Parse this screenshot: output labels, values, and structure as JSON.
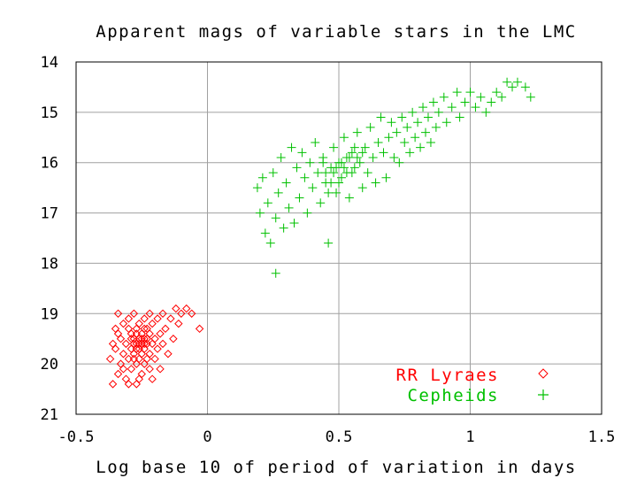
{
  "chart_data": {
    "type": "scatter",
    "title": "Apparent mags of variable stars in the LMC",
    "xlabel": "Log base 10 of period of variation in days",
    "ylabel": "",
    "xlim": [
      -0.5,
      1.5
    ],
    "ylim": [
      21,
      14
    ],
    "y_inverted": true,
    "grid": true,
    "legend_position": "bottom-right",
    "x_ticks": [
      "-0.5",
      "0",
      "0.5",
      "1",
      "1.5"
    ],
    "y_ticks": [
      "14",
      "15",
      "16",
      "17",
      "18",
      "19",
      "20",
      "21"
    ],
    "series": [
      {
        "name": "RR Lyraes",
        "marker": "diamond",
        "color": "#ff0000",
        "points": [
          [
            -0.37,
            19.9
          ],
          [
            -0.36,
            20.4
          ],
          [
            -0.35,
            19.3
          ],
          [
            -0.35,
            19.7
          ],
          [
            -0.34,
            20.2
          ],
          [
            -0.34,
            19.0
          ],
          [
            -0.33,
            19.5
          ],
          [
            -0.33,
            20.0
          ],
          [
            -0.32,
            19.2
          ],
          [
            -0.32,
            19.8
          ],
          [
            -0.31,
            20.3
          ],
          [
            -0.31,
            19.6
          ],
          [
            -0.3,
            19.1
          ],
          [
            -0.3,
            19.9
          ],
          [
            -0.3,
            20.4
          ],
          [
            -0.29,
            19.4
          ],
          [
            -0.29,
            19.7
          ],
          [
            -0.29,
            20.1
          ],
          [
            -0.28,
            19.0
          ],
          [
            -0.28,
            19.5
          ],
          [
            -0.28,
            19.8
          ],
          [
            -0.27,
            19.3
          ],
          [
            -0.27,
            19.6
          ],
          [
            -0.27,
            20.0
          ],
          [
            -0.27,
            20.4
          ],
          [
            -0.26,
            19.2
          ],
          [
            -0.26,
            19.5
          ],
          [
            -0.26,
            19.7
          ],
          [
            -0.26,
            19.9
          ],
          [
            -0.25,
            19.4
          ],
          [
            -0.25,
            19.6
          ],
          [
            -0.25,
            19.8
          ],
          [
            -0.25,
            20.2
          ],
          [
            -0.24,
            19.1
          ],
          [
            -0.24,
            19.5
          ],
          [
            -0.24,
            19.7
          ],
          [
            -0.24,
            20.0
          ],
          [
            -0.23,
            19.3
          ],
          [
            -0.23,
            19.6
          ],
          [
            -0.23,
            19.9
          ],
          [
            -0.22,
            19.0
          ],
          [
            -0.22,
            19.4
          ],
          [
            -0.22,
            19.8
          ],
          [
            -0.21,
            19.2
          ],
          [
            -0.21,
            19.6
          ],
          [
            -0.21,
            20.3
          ],
          [
            -0.2,
            19.5
          ],
          [
            -0.2,
            19.9
          ],
          [
            -0.19,
            19.1
          ],
          [
            -0.19,
            19.7
          ],
          [
            -0.18,
            19.4
          ],
          [
            -0.18,
            20.1
          ],
          [
            -0.17,
            19.0
          ],
          [
            -0.17,
            19.6
          ],
          [
            -0.16,
            19.3
          ],
          [
            -0.15,
            19.8
          ],
          [
            -0.14,
            19.1
          ],
          [
            -0.13,
            19.5
          ],
          [
            -0.12,
            18.9
          ],
          [
            -0.11,
            19.2
          ],
          [
            -0.1,
            19.0
          ],
          [
            -0.08,
            18.9
          ],
          [
            -0.03,
            19.3
          ],
          [
            -0.06,
            19.0
          ],
          [
            -0.36,
            19.6
          ],
          [
            -0.34,
            19.4
          ],
          [
            -0.32,
            20.1
          ],
          [
            -0.3,
            19.3
          ],
          [
            -0.28,
            19.9
          ],
          [
            -0.26,
            20.3
          ],
          [
            -0.24,
            19.3
          ],
          [
            -0.22,
            20.1
          ],
          [
            -0.27,
            19.4
          ],
          [
            -0.26,
            19.6
          ],
          [
            -0.25,
            19.5
          ],
          [
            -0.24,
            19.6
          ],
          [
            -0.23,
            19.5
          ],
          [
            -0.28,
            19.6
          ],
          [
            -0.29,
            19.5
          ],
          [
            -0.27,
            19.7
          ]
        ]
      },
      {
        "name": "Cepheids",
        "marker": "plus",
        "color": "#00c000",
        "points": [
          [
            0.19,
            16.5
          ],
          [
            0.2,
            17.0
          ],
          [
            0.21,
            16.3
          ],
          [
            0.22,
            17.4
          ],
          [
            0.23,
            16.8
          ],
          [
            0.24,
            17.6
          ],
          [
            0.25,
            16.2
          ],
          [
            0.26,
            18.2
          ],
          [
            0.26,
            17.1
          ],
          [
            0.27,
            16.6
          ],
          [
            0.28,
            15.9
          ],
          [
            0.29,
            17.3
          ],
          [
            0.3,
            16.4
          ],
          [
            0.31,
            16.9
          ],
          [
            0.32,
            15.7
          ],
          [
            0.33,
            17.2
          ],
          [
            0.34,
            16.1
          ],
          [
            0.35,
            16.7
          ],
          [
            0.36,
            15.8
          ],
          [
            0.37,
            16.3
          ],
          [
            0.38,
            17.0
          ],
          [
            0.39,
            16.0
          ],
          [
            0.4,
            16.5
          ],
          [
            0.41,
            15.6
          ],
          [
            0.42,
            16.2
          ],
          [
            0.43,
            16.8
          ],
          [
            0.44,
            15.9
          ],
          [
            0.45,
            16.4
          ],
          [
            0.46,
            17.6
          ],
          [
            0.47,
            16.1
          ],
          [
            0.48,
            15.7
          ],
          [
            0.49,
            16.6
          ],
          [
            0.5,
            16.0
          ],
          [
            0.51,
            16.3
          ],
          [
            0.52,
            15.5
          ],
          [
            0.53,
            16.2
          ],
          [
            0.54,
            16.7
          ],
          [
            0.55,
            15.8
          ],
          [
            0.56,
            16.1
          ],
          [
            0.57,
            15.4
          ],
          [
            0.58,
            16.0
          ],
          [
            0.59,
            16.5
          ],
          [
            0.6,
            15.7
          ],
          [
            0.61,
            16.2
          ],
          [
            0.62,
            15.3
          ],
          [
            0.63,
            15.9
          ],
          [
            0.64,
            16.4
          ],
          [
            0.65,
            15.6
          ],
          [
            0.66,
            15.1
          ],
          [
            0.67,
            15.8
          ],
          [
            0.68,
            16.3
          ],
          [
            0.69,
            15.5
          ],
          [
            0.7,
            15.2
          ],
          [
            0.71,
            15.9
          ],
          [
            0.72,
            15.4
          ],
          [
            0.73,
            16.0
          ],
          [
            0.74,
            15.1
          ],
          [
            0.75,
            15.6
          ],
          [
            0.76,
            15.3
          ],
          [
            0.77,
            15.8
          ],
          [
            0.78,
            15.0
          ],
          [
            0.79,
            15.5
          ],
          [
            0.8,
            15.2
          ],
          [
            0.81,
            15.7
          ],
          [
            0.82,
            14.9
          ],
          [
            0.83,
            15.4
          ],
          [
            0.84,
            15.1
          ],
          [
            0.85,
            15.6
          ],
          [
            0.86,
            14.8
          ],
          [
            0.87,
            15.3
          ],
          [
            0.88,
            15.0
          ],
          [
            0.9,
            14.7
          ],
          [
            0.91,
            15.2
          ],
          [
            0.93,
            14.9
          ],
          [
            0.95,
            14.6
          ],
          [
            0.96,
            15.1
          ],
          [
            0.98,
            14.8
          ],
          [
            1.0,
            14.6
          ],
          [
            1.02,
            14.9
          ],
          [
            1.04,
            14.7
          ],
          [
            1.06,
            15.0
          ],
          [
            1.08,
            14.8
          ],
          [
            1.1,
            14.6
          ],
          [
            1.12,
            14.7
          ],
          [
            1.14,
            14.4
          ],
          [
            1.16,
            14.5
          ],
          [
            1.18,
            14.4
          ],
          [
            1.21,
            14.5
          ],
          [
            1.23,
            14.7
          ],
          [
            0.45,
            16.2
          ],
          [
            0.47,
            16.4
          ],
          [
            0.49,
            16.1
          ],
          [
            0.51,
            16.0
          ],
          [
            0.53,
            15.9
          ],
          [
            0.55,
            16.2
          ],
          [
            0.57,
            15.9
          ],
          [
            0.59,
            15.8
          ],
          [
            0.44,
            16.0
          ],
          [
            0.46,
            16.6
          ],
          [
            0.5,
            16.4
          ],
          [
            0.52,
            16.1
          ],
          [
            0.54,
            15.9
          ],
          [
            0.56,
            15.7
          ],
          [
            0.48,
            16.2
          ]
        ]
      }
    ]
  }
}
